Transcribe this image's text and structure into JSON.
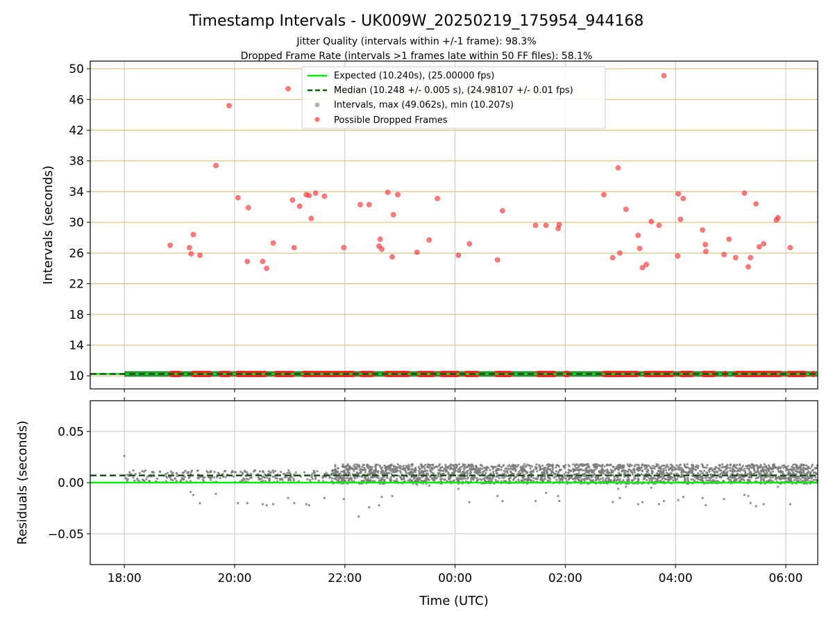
{
  "figure": {
    "title": "Timestamp Intervals - UK009W_20250219_175954_944168",
    "subtitle_1": "Jitter Quality (intervals within +/-1 frame): 98.3%",
    "subtitle_2": "Dropped Frame Rate (intervals >1 frames late within 50 FF files): 58.1%"
  },
  "chart_data": [
    {
      "type": "scatter",
      "panel": "top",
      "xlabel": "",
      "ylabel": "Intervals (seconds)",
      "x_unit": "hours since 00:00 UTC (negative = previous day)",
      "xlim": [
        -6.62,
        6.58
      ],
      "ylim": [
        8.3,
        51.0
      ],
      "yticks": [
        10,
        14,
        18,
        22,
        26,
        30,
        34,
        38,
        42,
        46,
        50
      ],
      "xticks": [
        -6,
        -4,
        -2,
        0,
        2,
        4,
        6
      ],
      "xtick_labels": [
        "18:00",
        "20:00",
        "22:00",
        "00:00",
        "02:00",
        "04:00",
        "06:00"
      ],
      "grid": true,
      "legend_position": "top-center",
      "legend": [
        {
          "label": "Expected (10.240s), (25.00000 fps)",
          "kind": "solid-line",
          "color": "#00ee00"
        },
        {
          "label": "Median (10.248 +/- 0.005 s), (24.98107 +/- 0.01 fps)",
          "kind": "dashed-line",
          "color": "#006400"
        },
        {
          "label": "Intervals, max (49.062s), min (10.207s)",
          "kind": "dot",
          "color": "#808080"
        },
        {
          "label": "Possible Dropped Frames",
          "kind": "dot",
          "color": "#ff3333"
        }
      ],
      "expected_line": 10.24,
      "median_line": 10.248,
      "intervals_band": {
        "y": 10.245,
        "x_range": [
          -6.0,
          6.58
        ]
      },
      "dropped_frame_clusters": [
        [
          -5.2,
          -4.95
        ],
        [
          -4.8,
          -4.4
        ],
        [
          -4.3,
          -4.05
        ],
        [
          -4.0,
          -3.4
        ],
        [
          -3.3,
          -2.9
        ],
        [
          -2.8,
          -1.8
        ],
        [
          -1.75,
          -1.45
        ],
        [
          -1.3,
          -0.8
        ],
        [
          -0.7,
          -0.35
        ],
        [
          -0.3,
          0.1
        ],
        [
          0.15,
          0.45
        ],
        [
          0.7,
          1.05
        ],
        [
          1.45,
          1.85
        ],
        [
          1.95,
          2.1
        ],
        [
          2.65,
          3.35
        ],
        [
          3.4,
          4.0
        ],
        [
          4.05,
          4.35
        ],
        [
          4.45,
          4.75
        ],
        [
          4.85,
          4.95
        ],
        [
          5.05,
          5.95
        ],
        [
          6.0,
          6.4
        ],
        [
          6.45,
          6.55
        ]
      ],
      "dropped_frames": [
        {
          "x": -5.17,
          "y": 27.0
        },
        {
          "x": -4.82,
          "y": 26.7
        },
        {
          "x": -4.79,
          "y": 25.9
        },
        {
          "x": -4.75,
          "y": 28.4
        },
        {
          "x": -4.63,
          "y": 25.7
        },
        {
          "x": -4.34,
          "y": 37.4
        },
        {
          "x": -4.1,
          "y": 45.2
        },
        {
          "x": -3.94,
          "y": 33.2
        },
        {
          "x": -3.77,
          "y": 24.9
        },
        {
          "x": -3.75,
          "y": 31.9
        },
        {
          "x": -3.49,
          "y": 24.9
        },
        {
          "x": -3.42,
          "y": 24.0
        },
        {
          "x": -3.3,
          "y": 27.3
        },
        {
          "x": -3.03,
          "y": 47.4
        },
        {
          "x": -2.95,
          "y": 32.9
        },
        {
          "x": -2.92,
          "y": 26.7
        },
        {
          "x": -2.82,
          "y": 32.1
        },
        {
          "x": -2.7,
          "y": 33.6
        },
        {
          "x": -2.65,
          "y": 33.5
        },
        {
          "x": -2.61,
          "y": 30.5
        },
        {
          "x": -2.53,
          "y": 33.8
        },
        {
          "x": -2.37,
          "y": 33.4
        },
        {
          "x": -2.02,
          "y": 26.7
        },
        {
          "x": -1.72,
          "y": 32.3
        },
        {
          "x": -1.56,
          "y": 32.3
        },
        {
          "x": -1.38,
          "y": 26.9
        },
        {
          "x": -1.36,
          "y": 27.8
        },
        {
          "x": -1.33,
          "y": 26.5
        },
        {
          "x": -1.22,
          "y": 33.9
        },
        {
          "x": -1.14,
          "y": 25.5
        },
        {
          "x": -1.12,
          "y": 31.0
        },
        {
          "x": -1.04,
          "y": 33.6
        },
        {
          "x": -0.69,
          "y": 26.1
        },
        {
          "x": -0.47,
          "y": 27.7
        },
        {
          "x": -0.32,
          "y": 33.1
        },
        {
          "x": 0.06,
          "y": 25.7
        },
        {
          "x": 0.26,
          "y": 27.2
        },
        {
          "x": 0.77,
          "y": 25.1
        },
        {
          "x": 0.86,
          "y": 31.5
        },
        {
          "x": 1.46,
          "y": 29.6
        },
        {
          "x": 1.65,
          "y": 29.6
        },
        {
          "x": 1.87,
          "y": 29.2
        },
        {
          "x": 1.89,
          "y": 29.7
        },
        {
          "x": 2.7,
          "y": 33.6
        },
        {
          "x": 2.86,
          "y": 25.4
        },
        {
          "x": 2.96,
          "y": 37.1
        },
        {
          "x": 2.99,
          "y": 26.0
        },
        {
          "x": 3.1,
          "y": 31.7
        },
        {
          "x": 3.32,
          "y": 28.3
        },
        {
          "x": 3.35,
          "y": 26.6
        },
        {
          "x": 3.4,
          "y": 24.1
        },
        {
          "x": 3.47,
          "y": 24.5
        },
        {
          "x": 3.56,
          "y": 30.1
        },
        {
          "x": 3.7,
          "y": 29.6
        },
        {
          "x": 3.79,
          "y": 49.1
        },
        {
          "x": 4.04,
          "y": 25.6
        },
        {
          "x": 4.05,
          "y": 33.7
        },
        {
          "x": 4.09,
          "y": 30.4
        },
        {
          "x": 4.14,
          "y": 33.1
        },
        {
          "x": 4.49,
          "y": 29.0
        },
        {
          "x": 4.54,
          "y": 27.1
        },
        {
          "x": 4.55,
          "y": 26.2
        },
        {
          "x": 4.88,
          "y": 25.8
        },
        {
          "x": 4.97,
          "y": 27.8
        },
        {
          "x": 5.09,
          "y": 25.4
        },
        {
          "x": 5.25,
          "y": 33.8
        },
        {
          "x": 5.32,
          "y": 24.2
        },
        {
          "x": 5.36,
          "y": 25.4
        },
        {
          "x": 5.46,
          "y": 32.4
        },
        {
          "x": 5.52,
          "y": 26.8
        },
        {
          "x": 5.6,
          "y": 27.2
        },
        {
          "x": 5.83,
          "y": 30.3
        },
        {
          "x": 5.86,
          "y": 30.6
        },
        {
          "x": 6.08,
          "y": 26.7
        }
      ]
    },
    {
      "type": "scatter",
      "panel": "bottom",
      "xlabel": "Time (UTC)",
      "ylabel": "Residuals (seconds)",
      "xlim": [
        -6.62,
        6.58
      ],
      "ylim": [
        -0.08,
        0.08
      ],
      "yticks": [
        -0.05,
        0.0,
        0.05
      ],
      "ytick_labels": [
        "−0.05",
        "0.00",
        "0.05"
      ],
      "xticks": [
        -6,
        -4,
        -2,
        0,
        2,
        4,
        6
      ],
      "xtick_labels": [
        "18:00",
        "20:00",
        "22:00",
        "00:00",
        "02:00",
        "04:00",
        "06:00"
      ],
      "grid": true,
      "expected_line": 0.0,
      "median_line": 0.007,
      "band_early": {
        "x_range": [
          -6.0,
          -2.25
        ],
        "y_range": [
          0.0,
          0.012
        ]
      },
      "band_late": {
        "x_range": [
          -2.25,
          6.58
        ],
        "y_range": [
          -0.001,
          0.018
        ]
      },
      "outliers": [
        {
          "x": -6.0,
          "y": 0.026
        },
        {
          "x": -4.8,
          "y": -0.009
        },
        {
          "x": -4.75,
          "y": -0.012
        },
        {
          "x": -4.63,
          "y": -0.02
        },
        {
          "x": -4.34,
          "y": -0.011
        },
        {
          "x": -3.94,
          "y": -0.02
        },
        {
          "x": -3.77,
          "y": -0.02
        },
        {
          "x": -3.49,
          "y": -0.021
        },
        {
          "x": -3.42,
          "y": -0.022
        },
        {
          "x": -3.3,
          "y": -0.021
        },
        {
          "x": -3.03,
          "y": -0.015
        },
        {
          "x": -2.92,
          "y": -0.02
        },
        {
          "x": -2.7,
          "y": -0.021
        },
        {
          "x": -2.65,
          "y": -0.022
        },
        {
          "x": -2.37,
          "y": -0.015
        },
        {
          "x": -2.02,
          "y": -0.016
        },
        {
          "x": -1.75,
          "y": -0.033
        },
        {
          "x": -1.56,
          "y": -0.024
        },
        {
          "x": -1.38,
          "y": -0.022
        },
        {
          "x": -1.33,
          "y": -0.014
        },
        {
          "x": -1.14,
          "y": -0.013
        },
        {
          "x": -0.69,
          "y": -0.002
        },
        {
          "x": -0.47,
          "y": -0.003
        },
        {
          "x": 0.06,
          "y": -0.006
        },
        {
          "x": 0.26,
          "y": -0.019
        },
        {
          "x": 0.77,
          "y": -0.013
        },
        {
          "x": 0.86,
          "y": -0.018
        },
        {
          "x": 1.46,
          "y": -0.018
        },
        {
          "x": 1.65,
          "y": -0.01
        },
        {
          "x": 1.87,
          "y": -0.013
        },
        {
          "x": 1.89,
          "y": -0.018
        },
        {
          "x": 2.86,
          "y": -0.019
        },
        {
          "x": 2.96,
          "y": -0.006
        },
        {
          "x": 2.99,
          "y": -0.015
        },
        {
          "x": 3.1,
          "y": -0.004
        },
        {
          "x": 3.32,
          "y": -0.021
        },
        {
          "x": 3.4,
          "y": -0.019
        },
        {
          "x": 3.56,
          "y": -0.005
        },
        {
          "x": 3.7,
          "y": -0.021
        },
        {
          "x": 3.79,
          "y": -0.018
        },
        {
          "x": 4.05,
          "y": -0.017
        },
        {
          "x": 4.14,
          "y": -0.014
        },
        {
          "x": 4.49,
          "y": -0.015
        },
        {
          "x": 4.55,
          "y": -0.022
        },
        {
          "x": 4.88,
          "y": -0.016
        },
        {
          "x": 5.25,
          "y": -0.012
        },
        {
          "x": 5.32,
          "y": -0.013
        },
        {
          "x": 5.36,
          "y": -0.02
        },
        {
          "x": 5.46,
          "y": -0.023
        },
        {
          "x": 5.6,
          "y": -0.021
        },
        {
          "x": 5.86,
          "y": -0.004
        },
        {
          "x": 6.08,
          "y": -0.021
        }
      ]
    }
  ]
}
